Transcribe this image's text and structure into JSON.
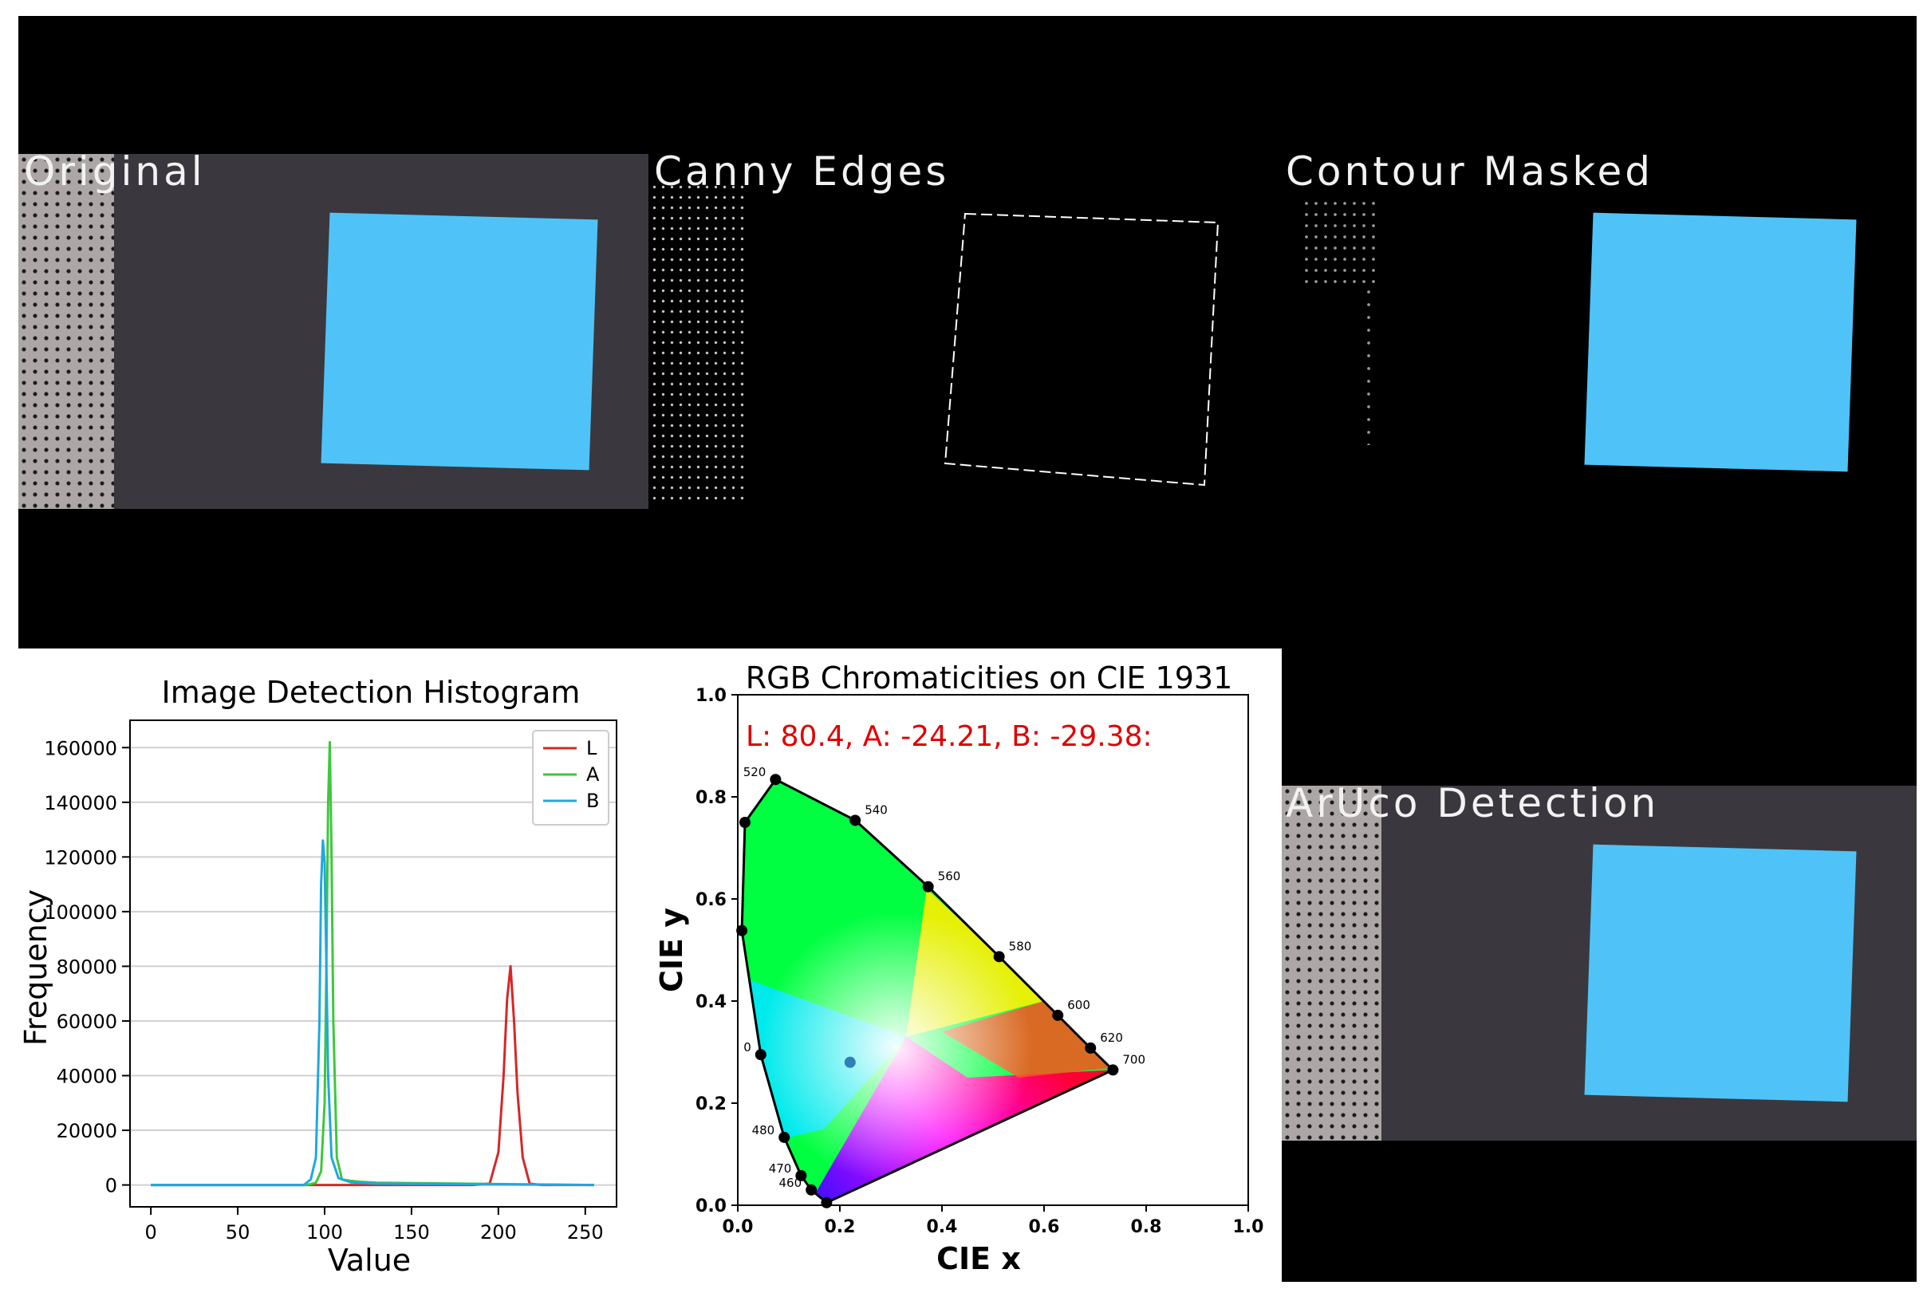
{
  "panels": {
    "original": {
      "label": "Original"
    },
    "canny": {
      "label": "Canny Edges"
    },
    "contour": {
      "label": "Contour Masked"
    },
    "aruco": {
      "label": "ArUco Detection"
    }
  },
  "colors": {
    "background": "#000000",
    "desk": "#3a383e",
    "note": "#4fc3f7",
    "L": "#d62728",
    "A": "#3cc83c",
    "B": "#1fa8e0"
  },
  "chart_data": [
    {
      "type": "line",
      "title": "Image Detection Histogram",
      "xlabel": "Value",
      "ylabel": "Frequency",
      "xlim": [
        -12,
        268
      ],
      "ylim": [
        -8000,
        170000
      ],
      "x_ticks": [
        0,
        50,
        100,
        150,
        200,
        250
      ],
      "y_ticks": [
        0,
        20000,
        40000,
        60000,
        80000,
        100000,
        120000,
        140000,
        160000
      ],
      "grid": "horizontal",
      "legend_position": "top-right",
      "series": [
        {
          "name": "L",
          "color": "#d62728",
          "x": [
            0,
            185,
            195,
            200,
            203,
            205,
            207,
            209,
            211,
            214,
            218,
            225,
            255
          ],
          "values": [
            0,
            0,
            500,
            12000,
            40000,
            68000,
            80000,
            60000,
            34000,
            10000,
            500,
            0,
            0
          ]
        },
        {
          "name": "A",
          "color": "#3cc83c",
          "x": [
            0,
            90,
            95,
            98,
            100,
            101,
            102,
            103,
            104,
            105,
            107,
            110,
            115,
            120,
            130,
            255
          ],
          "values": [
            0,
            0,
            800,
            5000,
            30000,
            80000,
            140000,
            162000,
            120000,
            60000,
            10000,
            2000,
            1500,
            1200,
            800,
            0
          ]
        },
        {
          "name": "B",
          "color": "#1fa8e0",
          "x": [
            0,
            88,
            92,
            95,
            97,
            98,
            99,
            100,
            101,
            102,
            104,
            108,
            115,
            130,
            255
          ],
          "values": [
            0,
            0,
            2000,
            10000,
            60000,
            110000,
            126000,
            118000,
            80000,
            40000,
            10000,
            2500,
            1000,
            500,
            0
          ]
        }
      ]
    },
    {
      "type": "scatter",
      "title": "RGB Chromaticities on CIE 1931",
      "annotation": "L: 80.4, A: -24.21, B: -29.38:",
      "xlabel": "CIE x",
      "ylabel": "CIE y",
      "xlim": [
        0,
        1
      ],
      "ylim": [
        0,
        1
      ],
      "x_ticks": [
        "0.0",
        "0.2",
        "0.4",
        "0.6",
        "0.8",
        "1.0"
      ],
      "y_ticks": [
        "0.0",
        "0.2",
        "0.4",
        "0.6",
        "0.8",
        "1.0"
      ],
      "locus_points": [
        {
          "label": "460",
          "x": 0.144,
          "y": 0.03
        },
        {
          "label": "470",
          "x": 0.124,
          "y": 0.058
        },
        {
          "label": "480",
          "x": 0.091,
          "y": 0.133
        },
        {
          "label": "0",
          "x": 0.045,
          "y": 0.295
        },
        {
          "label": "",
          "x": 0.008,
          "y": 0.538
        },
        {
          "label": "",
          "x": 0.014,
          "y": 0.75
        },
        {
          "label": "520",
          "x": 0.074,
          "y": 0.834
        },
        {
          "label": "540",
          "x": 0.23,
          "y": 0.754
        },
        {
          "label": "560",
          "x": 0.373,
          "y": 0.624
        },
        {
          "label": "580",
          "x": 0.512,
          "y": 0.487
        },
        {
          "label": "600",
          "x": 0.627,
          "y": 0.372
        },
        {
          "label": "620",
          "x": 0.691,
          "y": 0.308
        },
        {
          "label": "700",
          "x": 0.735,
          "y": 0.265
        },
        {
          "label": "",
          "x": 0.174,
          "y": 0.005
        }
      ],
      "measured_point": {
        "x": 0.22,
        "y": 0.28,
        "color": "#2f7fb8"
      }
    }
  ]
}
